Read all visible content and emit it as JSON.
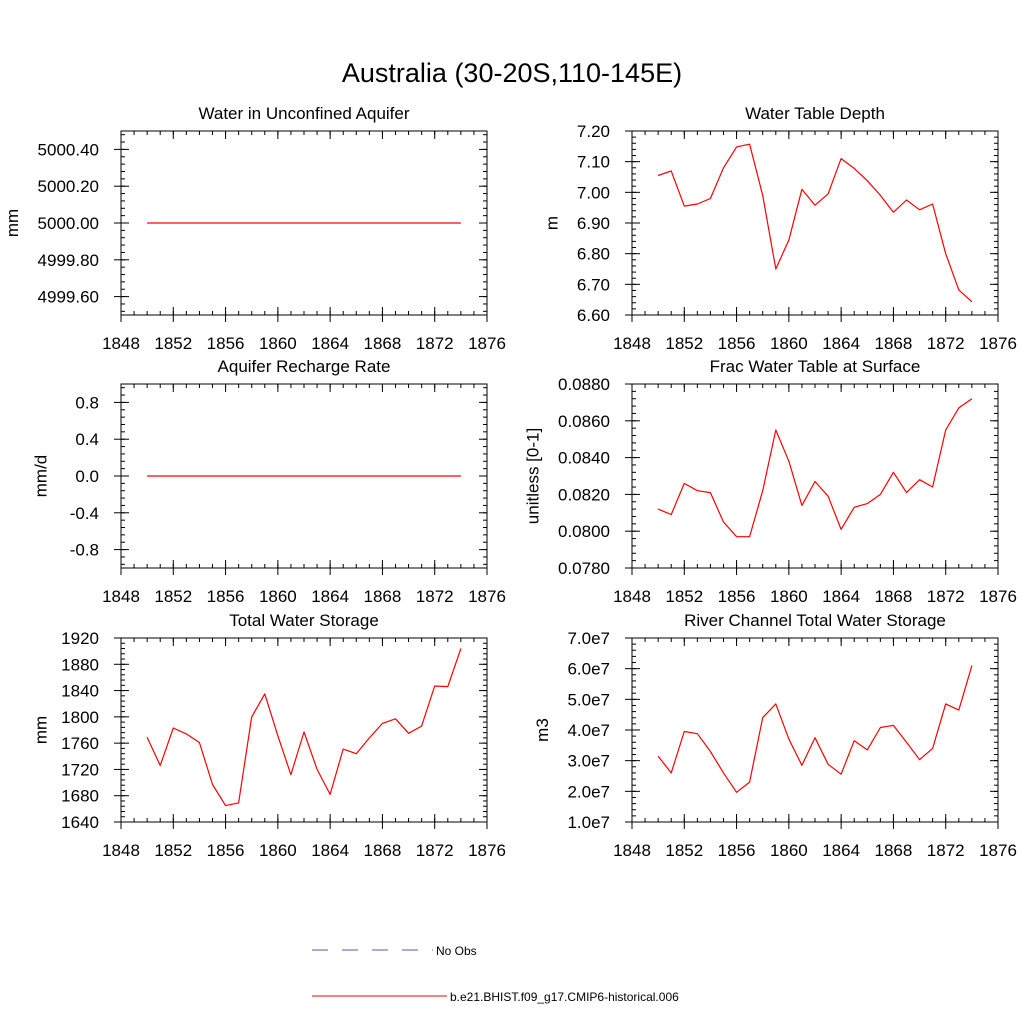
{
  "figure": {
    "title": "Australia (30-20S,110-145E)"
  },
  "legend": {
    "position": "bottom-center",
    "entries": [
      {
        "label": "No Obs",
        "style": "dashed",
        "color": "#5a5aa8"
      },
      {
        "label": "b.e21.BHIST.f09_g17.CMIP6-historical.006",
        "style": "solid",
        "color": "#ff0000"
      }
    ]
  },
  "chart_data": [
    {
      "type": "line",
      "title": "Water in Unconfined Aquifer",
      "ylabel": "mm",
      "xlim": [
        1848,
        1876
      ],
      "xticks": [
        "1848",
        "1852",
        "1856",
        "1860",
        "1864",
        "1868",
        "1872",
        "1876"
      ],
      "ylim": [
        4999.5,
        5000.5
      ],
      "yticks": [
        "4999.60",
        "4999.80",
        "5000.00",
        "5000.20",
        "5000.40"
      ],
      "ytick_values": [
        4999.6,
        4999.8,
        5000.0,
        5000.2,
        5000.4
      ],
      "series": [
        {
          "color": "#ff0000",
          "x": [
            1850,
            1874
          ],
          "y": [
            5000.0,
            5000.0
          ]
        }
      ]
    },
    {
      "type": "line",
      "title": "Water Table Depth",
      "ylabel": "m",
      "xlim": [
        1848,
        1876
      ],
      "xticks": [
        "1848",
        "1852",
        "1856",
        "1860",
        "1864",
        "1868",
        "1872",
        "1876"
      ],
      "ylim": [
        6.6,
        7.2
      ],
      "yticks": [
        "6.60",
        "6.70",
        "6.80",
        "6.90",
        "7.00",
        "7.10",
        "7.20"
      ],
      "ytick_values": [
        6.6,
        6.7,
        6.8,
        6.9,
        7.0,
        7.1,
        7.2
      ],
      "series": [
        {
          "color": "#ff0000",
          "x": [
            1850,
            1851,
            1852,
            1853,
            1854,
            1855,
            1856,
            1857,
            1858,
            1859,
            1860,
            1861,
            1862,
            1863,
            1864,
            1865,
            1866,
            1867,
            1868,
            1869,
            1870,
            1871,
            1872,
            1873,
            1874
          ],
          "y": [
            7.055,
            7.07,
            6.955,
            6.962,
            6.98,
            7.08,
            7.148,
            7.157,
            6.99,
            6.75,
            6.845,
            7.01,
            6.958,
            6.995,
            7.11,
            7.078,
            7.038,
            6.99,
            6.935,
            6.975,
            6.943,
            6.962,
            6.8,
            6.682,
            6.643
          ]
        }
      ]
    },
    {
      "type": "line",
      "title": "Aquifer Recharge Rate",
      "ylabel": "mm/d",
      "xlim": [
        1848,
        1876
      ],
      "xticks": [
        "1848",
        "1852",
        "1856",
        "1860",
        "1864",
        "1868",
        "1872",
        "1876"
      ],
      "ylim": [
        -1.0,
        1.0
      ],
      "yticks": [
        "-0.8",
        "-0.4",
        "0.0",
        "0.4",
        "0.8"
      ],
      "ytick_values": [
        -0.8,
        -0.4,
        0.0,
        0.4,
        0.8
      ],
      "series": [
        {
          "color": "#ff0000",
          "x": [
            1850,
            1874
          ],
          "y": [
            0.0,
            0.0
          ]
        }
      ]
    },
    {
      "type": "line",
      "title": "Frac Water Table at Surface",
      "ylabel": "unitless [0-1]",
      "xlim": [
        1848,
        1876
      ],
      "xticks": [
        "1848",
        "1852",
        "1856",
        "1860",
        "1864",
        "1868",
        "1872",
        "1876"
      ],
      "ylim": [
        0.078,
        0.088
      ],
      "yticks": [
        "0.0780",
        "0.0800",
        "0.0820",
        "0.0840",
        "0.0860",
        "0.0880"
      ],
      "ytick_values": [
        0.078,
        0.08,
        0.082,
        0.084,
        0.086,
        0.088
      ],
      "series": [
        {
          "color": "#ff0000",
          "x": [
            1850,
            1851,
            1852,
            1853,
            1854,
            1855,
            1856,
            1857,
            1858,
            1859,
            1860,
            1861,
            1862,
            1863,
            1864,
            1865,
            1866,
            1867,
            1868,
            1869,
            1870,
            1871,
            1872,
            1873,
            1874
          ],
          "y": [
            0.0812,
            0.0809,
            0.0826,
            0.0822,
            0.0821,
            0.0805,
            0.0797,
            0.0797,
            0.0822,
            0.0855,
            0.0838,
            0.0814,
            0.0827,
            0.0819,
            0.0801,
            0.0813,
            0.0815,
            0.082,
            0.0832,
            0.0821,
            0.0828,
            0.0824,
            0.0855,
            0.0867,
            0.0872
          ]
        }
      ]
    },
    {
      "type": "line",
      "title": "Total Water Storage",
      "ylabel": "mm",
      "xlim": [
        1848,
        1876
      ],
      "xticks": [
        "1848",
        "1852",
        "1856",
        "1860",
        "1864",
        "1868",
        "1872",
        "1876"
      ],
      "ylim": [
        1640,
        1920
      ],
      "yticks": [
        "1640",
        "1680",
        "1720",
        "1760",
        "1800",
        "1840",
        "1880",
        "1920"
      ],
      "ytick_values": [
        1640,
        1680,
        1720,
        1760,
        1800,
        1840,
        1880,
        1920
      ],
      "series": [
        {
          "color": "#ff0000",
          "x": [
            1850,
            1851,
            1852,
            1853,
            1854,
            1855,
            1856,
            1857,
            1858,
            1859,
            1860,
            1861,
            1862,
            1863,
            1864,
            1865,
            1866,
            1867,
            1868,
            1869,
            1870,
            1871,
            1872,
            1873,
            1874
          ],
          "y": [
            1769,
            1726,
            1783,
            1774,
            1761,
            1697,
            1665,
            1669,
            1800,
            1835,
            1771,
            1712,
            1777,
            1720,
            1682,
            1751,
            1744,
            1768,
            1790,
            1797,
            1775,
            1786,
            1847,
            1846,
            1904
          ]
        }
      ]
    },
    {
      "type": "line",
      "title": "River Channel Total Water Storage",
      "ylabel": "m3",
      "xlim": [
        1848,
        1876
      ],
      "xticks": [
        "1848",
        "1852",
        "1856",
        "1860",
        "1864",
        "1868",
        "1872",
        "1876"
      ],
      "ylim": [
        10000000,
        70000000
      ],
      "yticks": [
        "1.0e7",
        "2.0e7",
        "3.0e7",
        "4.0e7",
        "5.0e7",
        "6.0e7",
        "7.0e7"
      ],
      "ytick_values": [
        10000000,
        20000000,
        30000000,
        40000000,
        50000000,
        60000000,
        70000000
      ],
      "series": [
        {
          "color": "#ff0000",
          "x": [
            1850,
            1851,
            1852,
            1853,
            1854,
            1855,
            1856,
            1857,
            1858,
            1859,
            1860,
            1861,
            1862,
            1863,
            1864,
            1865,
            1866,
            1867,
            1868,
            1869,
            1870,
            1871,
            1872,
            1873,
            1874
          ],
          "y": [
            31500000,
            26000000,
            39500000,
            38800000,
            33000000,
            26000000,
            19700000,
            23000000,
            44000000,
            48500000,
            37000000,
            28500000,
            37500000,
            28800000,
            25600000,
            36500000,
            33500000,
            40800000,
            41500000,
            36000000,
            30300000,
            34000000,
            48500000,
            46500000,
            61000000
          ]
        }
      ]
    }
  ]
}
